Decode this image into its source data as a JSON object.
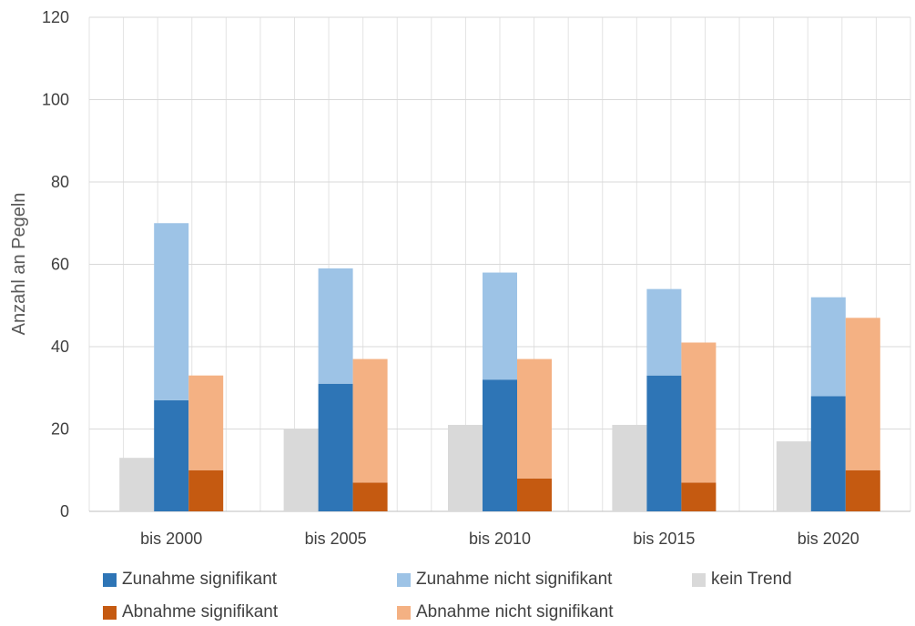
{
  "chart_data": {
    "type": "bar",
    "title": "",
    "xlabel": "",
    "ylabel": "Anzahl an Pegeln",
    "ylim": [
      0,
      120
    ],
    "yticks": [
      0,
      20,
      40,
      60,
      80,
      100,
      120
    ],
    "grid": true,
    "legend_position": "bottom",
    "categories": [
      "bis 2000",
      "bis 2005",
      "bis 2010",
      "bis 2015",
      "bis 2020"
    ],
    "groups": [
      {
        "name": "kein Trend",
        "stack": [
          {
            "name": "kein Trend",
            "color": "#d9d9d9",
            "values": [
              13,
              20,
              21,
              21,
              17
            ]
          }
        ]
      },
      {
        "name": "Zunahme",
        "stack": [
          {
            "name": "Zunahme signifikant",
            "color": "#2e75b6",
            "values": [
              27,
              31,
              32,
              33,
              28
            ]
          },
          {
            "name": "Zunahme nicht signifikant",
            "color": "#9dc3e6",
            "values": [
              43,
              28,
              26,
              21,
              24
            ]
          }
        ]
      },
      {
        "name": "Abnahme",
        "stack": [
          {
            "name": "Abnahme signifikant",
            "color": "#c55a11",
            "values": [
              10,
              7,
              8,
              7,
              10
            ]
          },
          {
            "name": "Abnahme nicht signifikant",
            "color": "#f4b183",
            "values": [
              23,
              30,
              29,
              34,
              37
            ]
          }
        ]
      }
    ],
    "legend": [
      {
        "label": "Zunahme signifikant",
        "color": "#2e75b6"
      },
      {
        "label": "Zunahme nicht signifikant",
        "color": "#9dc3e6"
      },
      {
        "label": "kein Trend",
        "color": "#d9d9d9"
      },
      {
        "label": "Abnahme signifikant",
        "color": "#c55a11"
      },
      {
        "label": "Abnahme nicht signifikant",
        "color": "#f4b183"
      }
    ]
  }
}
